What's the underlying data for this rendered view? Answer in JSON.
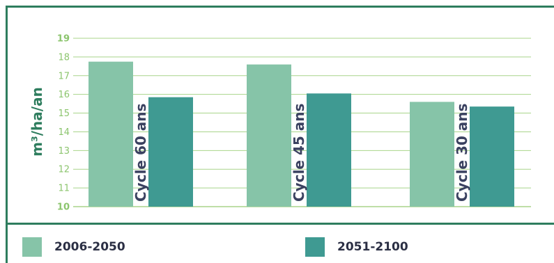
{
  "chart_data": {
    "type": "bar",
    "ylabel": "m³/ha/an",
    "ylim": [
      10,
      19
    ],
    "yticks": [
      10,
      11,
      12,
      13,
      14,
      15,
      16,
      17,
      18,
      19
    ],
    "grid": true,
    "legend_position": "bottom",
    "categories": [
      "Cycle 60 ans",
      "Cycle 45 ans",
      "Cycle 30 ans"
    ],
    "series": [
      {
        "name": "2006-2050",
        "values": [
          17.75,
          17.6,
          15.6
        ],
        "color": "#86c4a8"
      },
      {
        "name": "2051-2100",
        "values": [
          15.85,
          16.05,
          15.35
        ],
        "color": "#3f9a92"
      }
    ]
  },
  "colors": {
    "frame": "#2e7d5e",
    "grid": "#a8d48a",
    "tick_text": "#8cc56e",
    "category_text": "#3a4160",
    "axis_title": "#2e7d5e"
  }
}
